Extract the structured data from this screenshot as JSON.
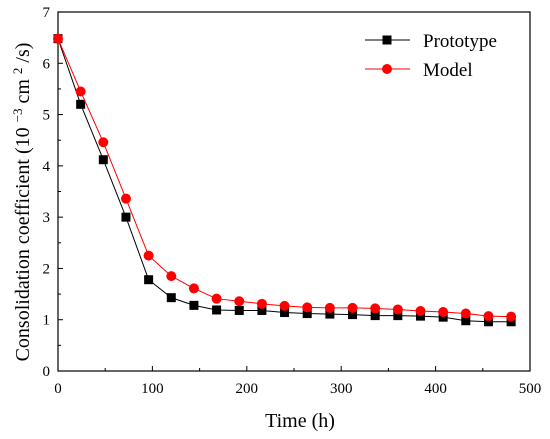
{
  "chart_data": {
    "type": "line",
    "xlabel": "Time (h)",
    "ylabel": "Consolidation coefficient",
    "ylabel_unit_prefix": "(10",
    "ylabel_exponent": "−3",
    "ylabel_unit_suffix": "cm",
    "ylabel_unit_power": "2",
    "ylabel_unit_end": "/s)",
    "xlim": [
      0,
      500
    ],
    "ylim": [
      0,
      7
    ],
    "xticks": [
      "0",
      "100",
      "200",
      "300",
      "400",
      "500"
    ],
    "yticks": [
      "0",
      "1",
      "2",
      "3",
      "4",
      "5",
      "6",
      "7"
    ],
    "xtick_values": [
      0,
      100,
      200,
      300,
      400,
      500
    ],
    "ytick_values": [
      0,
      1,
      2,
      3,
      4,
      5,
      6,
      7
    ],
    "grid": false,
    "legend_position": "top-right",
    "x": [
      0,
      24,
      48,
      72,
      96,
      120,
      144,
      168,
      192,
      216,
      240,
      264,
      288,
      312,
      336,
      360,
      384,
      408,
      432,
      456,
      480
    ],
    "series": [
      {
        "name": "Prototype",
        "color": "#000000",
        "marker": "square",
        "values": [
          6.48,
          5.2,
          4.12,
          3.0,
          1.78,
          1.43,
          1.28,
          1.19,
          1.18,
          1.18,
          1.14,
          1.12,
          1.11,
          1.1,
          1.08,
          1.08,
          1.07,
          1.05,
          0.98,
          0.96,
          0.96
        ]
      },
      {
        "name": "Model",
        "color": "#ff0000",
        "marker": "circle",
        "values": [
          6.48,
          5.45,
          4.46,
          3.36,
          2.25,
          1.85,
          1.61,
          1.41,
          1.36,
          1.31,
          1.27,
          1.24,
          1.23,
          1.23,
          1.22,
          1.2,
          1.17,
          1.15,
          1.12,
          1.07,
          1.06
        ]
      }
    ]
  }
}
